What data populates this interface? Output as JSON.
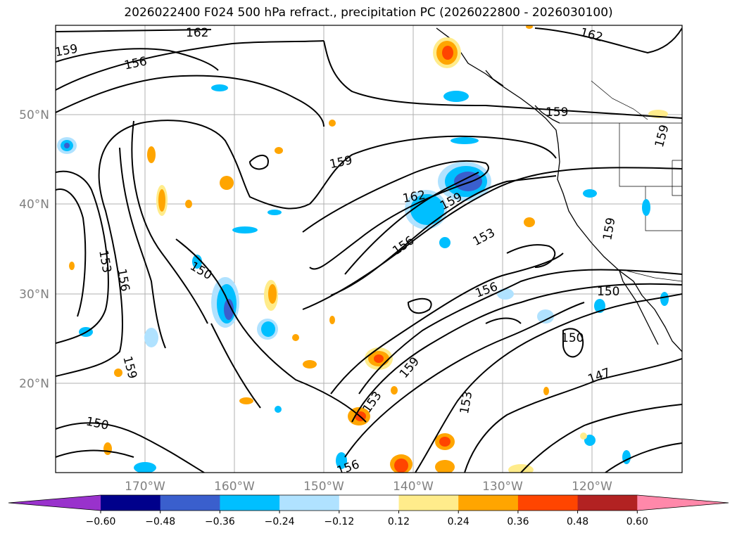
{
  "title": "2026022400 F024 500 hPa refract., precipitation PC (2026022800 - 2026030100)",
  "map": {
    "lon_ticks": [
      "170°W",
      "160°W",
      "150°W",
      "140°W",
      "130°W",
      "120°W"
    ],
    "lat_ticks": [
      "50°N",
      "40°N",
      "30°N",
      "20°N"
    ],
    "contour_labels": [
      "162",
      "159",
      "156",
      "153",
      "150",
      "147"
    ]
  },
  "colorbar": {
    "ticks": [
      "−0.60",
      "−0.48",
      "−0.36",
      "−0.24",
      "−0.12",
      "0.12",
      "0.24",
      "0.36",
      "0.48",
      "0.60"
    ],
    "colors": [
      "#9932cc",
      "#00008b",
      "#3a5fcd",
      "#00bfff",
      "#b0e2ff",
      "#ffffff",
      "#ffec8b",
      "#ffa500",
      "#ff4500",
      "#b22222",
      "#ff88aa"
    ]
  },
  "chart_data": {
    "type": "heatmap",
    "title": "2026022400 F024 500 hPa refract., precipitation PC (2026022800 - 2026030100)",
    "xlabel": "",
    "ylabel": "",
    "x_ticks": [
      "170°W",
      "160°W",
      "150°W",
      "140°W",
      "130°W",
      "120°W"
    ],
    "y_ticks": [
      "50°N",
      "40°N",
      "30°N",
      "20°N"
    ],
    "contour_levels": [
      147,
      150,
      153,
      156,
      159,
      162
    ],
    "colorbar_levels": [
      -0.6,
      -0.48,
      -0.36,
      -0.24,
      -0.12,
      0.12,
      0.24,
      0.36,
      0.48,
      0.6
    ],
    "grid": true,
    "colorbar_position": "bottom"
  }
}
